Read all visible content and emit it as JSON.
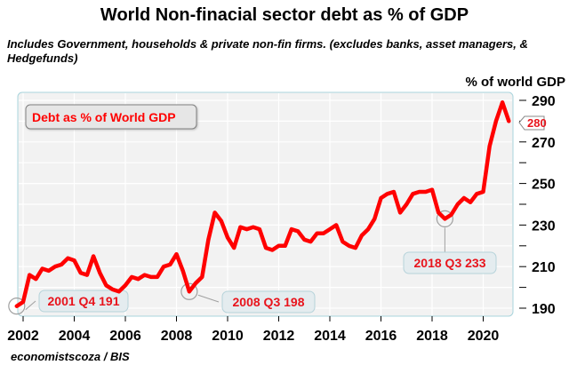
{
  "chart_data": {
    "type": "line",
    "title": "World Non-finacial sector debt as % of GDP",
    "subtitle": "Includes Government, households & private non-fin firms. (excludes banks, asset managers, & Hedgefunds)",
    "source": "economistscoza / BIS",
    "ylabel": "% of world GDP",
    "xlabel": "",
    "ylim": [
      185,
      293
    ],
    "xlim": [
      2001.75,
      2021.6
    ],
    "yticks": [
      190,
      200,
      210,
      220,
      230,
      240,
      250,
      260,
      270,
      280,
      290
    ],
    "ytick_labels": {
      "190": "190",
      "210": "210",
      "230": "230",
      "250": "250",
      "270": "270",
      "290": "290"
    },
    "xticks": [
      2002,
      2004,
      2006,
      2008,
      2010,
      2012,
      2014,
      2016,
      2018,
      2020
    ],
    "xtick_labels": [
      "2002",
      "2004",
      "2006",
      "2008",
      "2010",
      "2012",
      "2014",
      "2016",
      "2018",
      "2020"
    ],
    "grid": true,
    "legend": {
      "label": "Debt as % of World GDP",
      "position": "top-left"
    },
    "line_color": "#ff0000",
    "last_value_badge": "280",
    "series": [
      {
        "name": "Debt as % of World GDP",
        "x_start": 2001.75,
        "x_step": 0.25,
        "values": [
          191,
          193,
          206,
          204,
          209,
          208,
          210,
          211,
          214,
          213,
          207,
          206,
          215,
          207,
          201,
          199,
          198,
          201,
          205,
          204,
          206,
          205,
          205,
          210,
          211,
          216,
          208,
          198,
          202,
          205,
          223,
          236,
          232,
          224,
          219,
          229,
          228,
          229,
          228,
          219,
          218,
          220,
          220,
          228,
          227,
          223,
          222,
          226,
          226,
          228,
          230,
          222,
          220,
          219,
          225,
          228,
          233,
          243,
          245,
          246,
          236,
          240,
          245,
          246,
          246,
          247,
          236,
          233,
          235,
          240,
          243,
          241,
          245,
          246,
          268,
          280,
          289,
          280
        ]
      }
    ],
    "annotations": [
      {
        "label": "2001 Q4 191",
        "x": 2001.75,
        "y": 191
      },
      {
        "label": "2008 Q3 198",
        "x": 2008.5,
        "y": 198
      },
      {
        "label": "2018 Q3 233",
        "x": 2018.5,
        "y": 233
      }
    ]
  }
}
